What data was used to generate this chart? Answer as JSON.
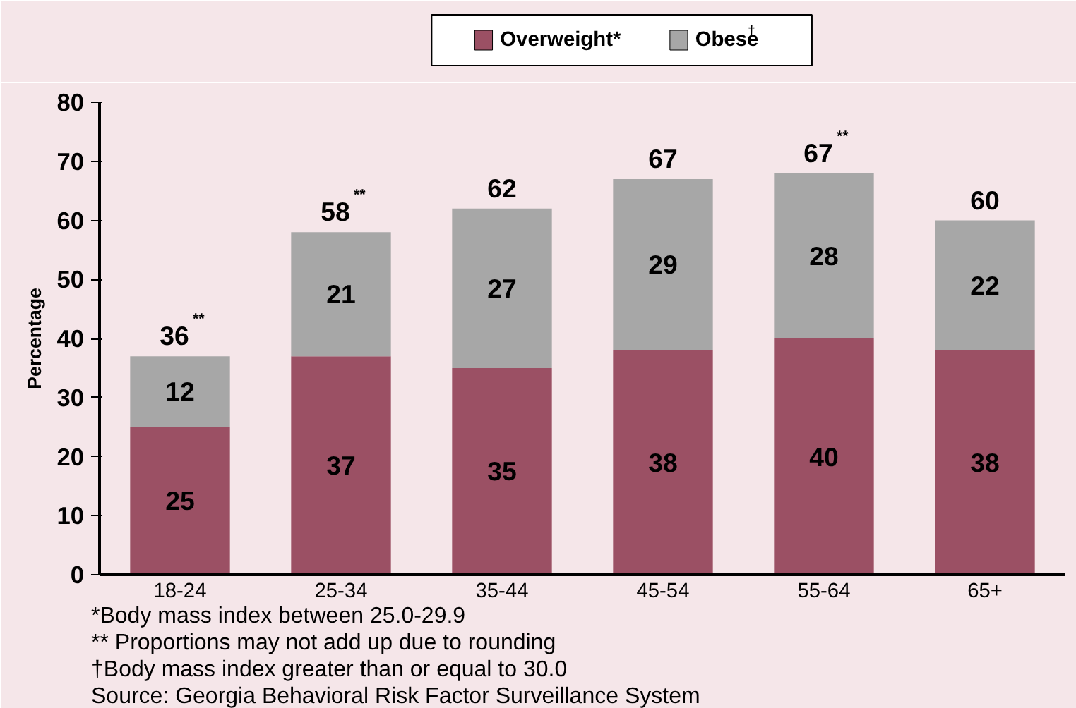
{
  "chart_data": {
    "type": "bar",
    "stacked": true,
    "ylabel": "Percentage",
    "categories": [
      "18-24",
      "25-34",
      "35-44",
      "45-54",
      "55-64",
      "65+"
    ],
    "series": [
      {
        "name": "Overweight*",
        "color": "#9b5064",
        "values": [
          25,
          37,
          35,
          38,
          40,
          38
        ]
      },
      {
        "name": "Obese$^{†}$",
        "color": "#a7a7a7",
        "values": [
          12,
          21,
          27,
          29,
          28,
          22
        ]
      }
    ],
    "totals": [
      "36$^{**}$",
      "58$^{**}$",
      "62",
      "67",
      "67$^{**}$",
      "60"
    ],
    "data_labels": true,
    "ylim": [
      0,
      80
    ],
    "yticks": [
      0,
      10,
      20,
      30,
      40,
      50,
      60,
      70,
      80
    ],
    "grid": false,
    "legend": "top",
    "annotations": [
      "*Body mass index between 25.0-29.9",
      "** Proportions may not add up due to rounding",
      "†Body mass index greater than or equal to 30.0",
      "Source: Georgia Behavioral Risk Factor Surveillance System"
    ]
  }
}
